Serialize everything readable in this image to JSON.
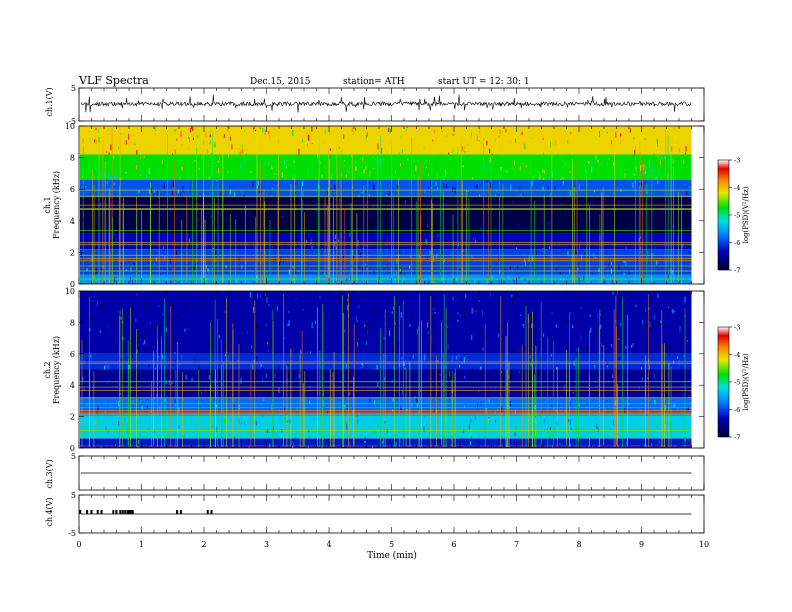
{
  "header": {
    "title": "VLF  Spectra",
    "date": "Dec.15, 2015",
    "station": "station= ATH",
    "start": "start  UT  =    12: 30: 1"
  },
  "chart_data": [
    {
      "type": "line",
      "name": "ch1-waveform",
      "ylabel": "ch.1(V)",
      "ylim": [
        -5,
        5
      ],
      "yticks": [
        5,
        -5
      ],
      "baseline": 0.2,
      "noise_amplitude": 0.6,
      "spike_amplitude": 1.5
    },
    {
      "type": "heatmap",
      "name": "ch1-spectrogram",
      "ylabel": [
        "ch.1",
        "Frequency  (kHz)"
      ],
      "xlim": [
        0,
        10
      ],
      "data_x_end": 9.8,
      "ylim": [
        0,
        10
      ],
      "yticks": [
        "0",
        "2",
        "4",
        "6",
        "8",
        "10"
      ],
      "colorbar": {
        "label": "log(PSD)(V²/Hz)",
        "range": [
          -7,
          -3
        ],
        "ticks": [
          "-3",
          "-4",
          "-5",
          "-6",
          "-7"
        ]
      },
      "bands": [
        {
          "from": 8.2,
          "to": 10,
          "level": -4.1
        },
        {
          "from": 6.6,
          "to": 8.2,
          "level": -4.7
        },
        {
          "from": 5.5,
          "to": 6.6,
          "level": -5.9
        },
        {
          "from": 3.2,
          "to": 5.5,
          "level": -6.9
        },
        {
          "from": 2.2,
          "to": 3.2,
          "level": -6.3
        },
        {
          "from": 0.6,
          "to": 2.2,
          "level": -6.0
        },
        {
          "from": 0,
          "to": 0.6,
          "level": -5.6
        }
      ]
    },
    {
      "type": "heatmap",
      "name": "ch2-spectrogram",
      "ylabel": [
        "ch.2",
        "Frequency  (kHz)"
      ],
      "xlim": [
        0,
        10
      ],
      "data_x_end": 9.8,
      "ylim": [
        0,
        10
      ],
      "yticks": [
        "0",
        "2",
        "4",
        "6",
        "8",
        "10"
      ],
      "colorbar": {
        "label": "log(PSD)(V²/Hz)",
        "range": [
          -7,
          -3
        ],
        "ticks": [
          "-3",
          "-4",
          "-5",
          "-6",
          "-7"
        ]
      },
      "bands": [
        {
          "from": 6.0,
          "to": 10,
          "level": -6.4
        },
        {
          "from": 5.0,
          "to": 6.0,
          "level": -6.1
        },
        {
          "from": 3.2,
          "to": 5.0,
          "level": -6.5
        },
        {
          "from": 2.2,
          "to": 3.2,
          "level": -5.8
        },
        {
          "from": 0.6,
          "to": 2.2,
          "level": -5.3
        },
        {
          "from": 0,
          "to": 0.6,
          "level": -6.2
        }
      ]
    },
    {
      "type": "line",
      "name": "ch3-waveform",
      "ylabel": "ch.3(V)",
      "ylim": [
        -5,
        5
      ],
      "yticks": [
        5
      ],
      "baseline": 0
    },
    {
      "type": "line",
      "name": "ch4-waveform",
      "ylabel": "ch.4(V)",
      "ylim": [
        -5,
        5
      ],
      "yticks": [
        5,
        -5
      ],
      "baseline": 0,
      "pulse_times": [
        0.02,
        0.13,
        0.2,
        0.3,
        0.36,
        0.55,
        0.6,
        0.66,
        0.7,
        0.74,
        0.78,
        0.8,
        0.83,
        0.86,
        1.57,
        1.63,
        2.06,
        2.12
      ]
    }
  ],
  "x_axis": {
    "label": "Time  (min)",
    "range": [
      0,
      10
    ],
    "ticks": [
      "0",
      "1",
      "2",
      "3",
      "4",
      "5",
      "6",
      "7",
      "8",
      "9",
      "10"
    ]
  }
}
